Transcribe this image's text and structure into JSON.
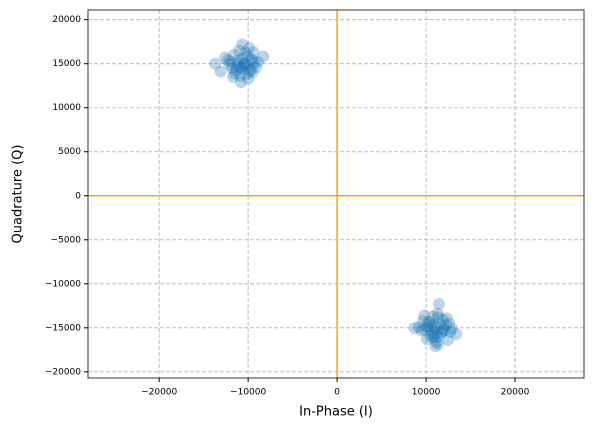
{
  "chart_data": {
    "type": "scatter",
    "xlabel": "In-Phase (I)",
    "ylabel": "Quadrature (Q)",
    "x": [
      -10500,
      -11200,
      -9800,
      -10100,
      -11800,
      -9300,
      -10900,
      -12100,
      -10300,
      -9600,
      -11500,
      -10700,
      -8900,
      -12600,
      -10000,
      -11000,
      -9500,
      -10400,
      -11300,
      -9900,
      -10800,
      -12300,
      -9100,
      -10200,
      -11600,
      -10600,
      -9700,
      -11100,
      -13100,
      -8300,
      -10450,
      -11700,
      -9400,
      -10950,
      -12000,
      -10150,
      -9550,
      -11350,
      -10650,
      -13700,
      11000,
      10300,
      11700,
      10800,
      12200,
      9900,
      11400,
      10500,
      12600,
      11100,
      9500,
      11900,
      10700,
      11300,
      12900,
      10100,
      11600,
      10900,
      9200,
      12300,
      11050,
      10400,
      11800,
      10600,
      13400,
      11250,
      9800,
      12100,
      10850,
      8700,
      11450,
      10250,
      12450,
      11150,
      9650,
      11950,
      10750,
      12700,
      11350,
      10050
    ],
    "y": [
      14800,
      15300,
      14200,
      15900,
      14500,
      15100,
      13600,
      14900,
      16200,
      15500,
      13900,
      14400,
      15200,
      15700,
      13300,
      16500,
      14000,
      15000,
      14700,
      16800,
      12900,
      15400,
      14600,
      13800,
      16000,
      15600,
      14300,
      15050,
      14100,
      15800,
      14950,
      13500,
      16300,
      14550,
      15250,
      14650,
      15350,
      14250,
      17200,
      15000,
      -15000,
      -14300,
      -15600,
      -16100,
      -14700,
      -15200,
      -13800,
      -15900,
      -14500,
      -16600,
      -15300,
      -14100,
      -15500,
      -13400,
      -15100,
      -16300,
      -14600,
      -15800,
      -14900,
      -13900,
      -17100,
      -14400,
      -15400,
      -14800,
      -15700,
      -16000,
      -13600,
      -15250,
      -14650,
      -15050,
      -12300,
      -14950,
      -16400,
      -15550,
      -14200,
      -15150,
      -13700,
      -15450,
      -16800,
      -14850
    ],
    "color": "#1f77b4",
    "alpha": 0.3,
    "xlim": [
      -28000,
      27750
    ],
    "ylim": [
      -20700,
      21100
    ],
    "xticks": [
      {
        "value": -20000,
        "label": "−20000"
      },
      {
        "value": -10000,
        "label": "−10000"
      },
      0,
      10000,
      20000
    ],
    "yticks": [
      {
        "value": -20000,
        "label": "−20000"
      },
      {
        "value": -15000,
        "label": "−15000"
      },
      {
        "value": -10000,
        "label": "−10000"
      },
      {
        "value": -5000,
        "label": "−5000"
      },
      0,
      5000,
      10000,
      15000,
      20000
    ],
    "grid": true,
    "hline": {
      "value": 0,
      "color": "orange"
    },
    "vline": {
      "value": 0,
      "color": "orange"
    }
  }
}
